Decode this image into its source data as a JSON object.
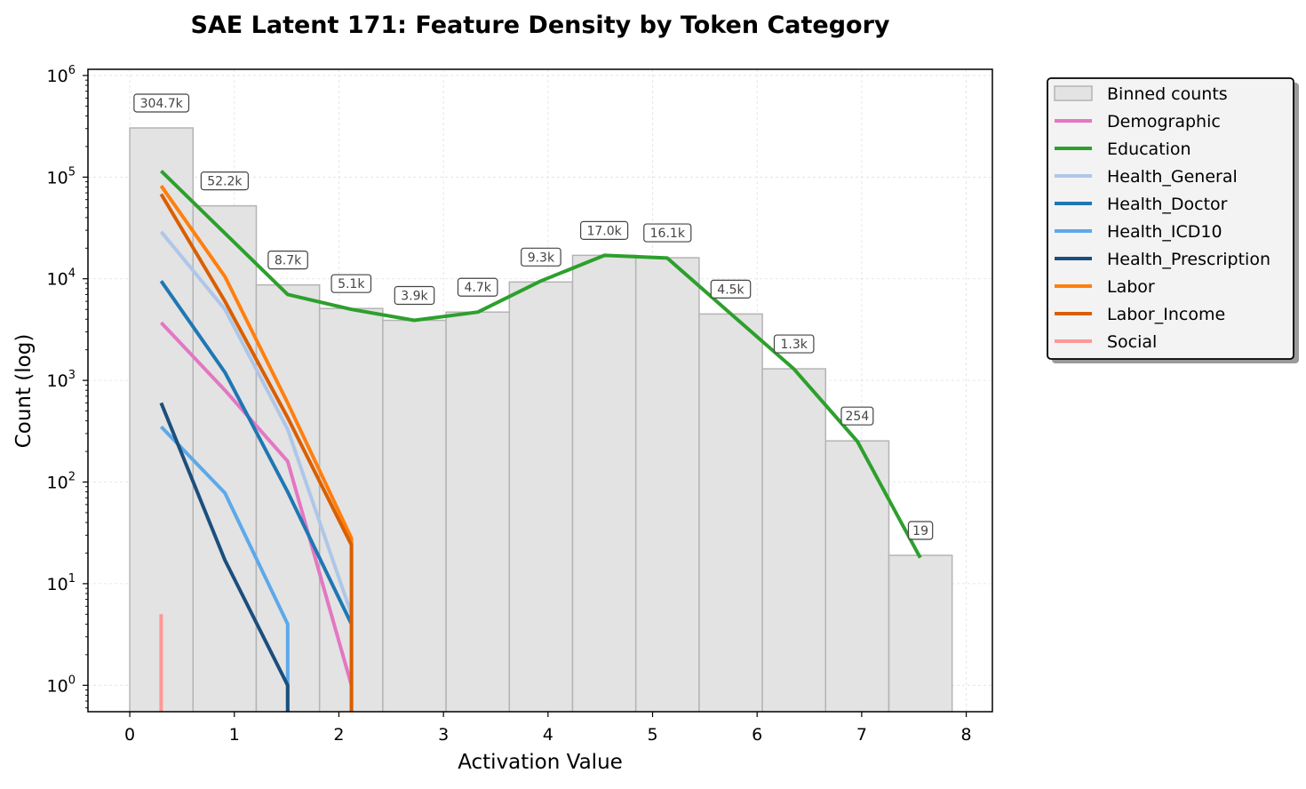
{
  "chart_data": {
    "type": "histogram",
    "title": "SAE Latent 171: Feature Density by Token Category",
    "xlabel": "Activation Value",
    "ylabel": "Count (log)",
    "xlim": [
      -0.4,
      8.25
    ],
    "ylim": [
      0.55,
      1150000
    ],
    "yscale": "log",
    "grid": true,
    "legend_position": "outside-right",
    "x_ticks": [
      {
        "value": 0,
        "label": "0"
      },
      {
        "value": 1,
        "label": "1"
      },
      {
        "value": 2,
        "label": "2"
      },
      {
        "value": 3,
        "label": "3"
      },
      {
        "value": 4,
        "label": "4"
      },
      {
        "value": 5,
        "label": "5"
      },
      {
        "value": 6,
        "label": "6"
      },
      {
        "value": 7,
        "label": "7"
      },
      {
        "value": 8,
        "label": "8"
      }
    ],
    "y_ticks": [
      {
        "value": 1,
        "base": "10",
        "exp": "0"
      },
      {
        "value": 10,
        "base": "10",
        "exp": "1"
      },
      {
        "value": 100,
        "base": "10",
        "exp": "2"
      },
      {
        "value": 1000,
        "base": "10",
        "exp": "3"
      },
      {
        "value": 10000,
        "base": "10",
        "exp": "4"
      },
      {
        "value": 100000,
        "base": "10",
        "exp": "5"
      },
      {
        "value": 1000000,
        "base": "10",
        "exp": "6"
      }
    ],
    "bin_edges": [
      0,
      0.605,
      1.21,
      1.815,
      2.42,
      3.025,
      3.63,
      4.235,
      4.84,
      5.445,
      6.05,
      6.655,
      7.26,
      7.865
    ],
    "bins": {
      "name": "Binned counts",
      "color": "#e3e3e3",
      "edge_color": "#b4b4b4",
      "counts": [
        304700,
        52200,
        8700,
        5100,
        3900,
        4700,
        9300,
        17000,
        16100,
        4500,
        1300,
        254,
        19
      ],
      "labels": [
        "304.7k",
        "52.2k",
        "8.7k",
        "5.1k",
        "3.9k",
        "4.7k",
        "9.3k",
        "17.0k",
        "16.1k",
        "4.5k",
        "1.3k",
        "254",
        "19"
      ]
    },
    "series": [
      {
        "name": "Demographic",
        "color": "#e377c2",
        "x": [
          0.3,
          0.91,
          1.51,
          2.12
        ],
        "y": [
          3700,
          800,
          160,
          1
        ]
      },
      {
        "name": "Education",
        "color": "#2ca02c",
        "x": [
          0.3,
          0.91,
          1.51,
          2.12,
          2.72,
          3.33,
          3.93,
          4.54,
          5.14,
          5.75,
          6.35,
          6.96,
          7.56
        ],
        "y": [
          115000,
          28000,
          7000,
          5000,
          3900,
          4700,
          9500,
          17000,
          16000,
          4500,
          1300,
          250,
          18
        ]
      },
      {
        "name": "Health_General",
        "color": "#aec7e8",
        "x": [
          0.3,
          0.91,
          1.51,
          2.12
        ],
        "y": [
          29000,
          5000,
          330,
          5
        ]
      },
      {
        "name": "Health_Doctor",
        "color": "#1f77b4",
        "x": [
          0.3,
          0.91,
          1.51,
          2.12
        ],
        "y": [
          9500,
          1200,
          80,
          4
        ]
      },
      {
        "name": "Health_ICD10",
        "color": "#5da9e9",
        "x": [
          0.3,
          0.91,
          1.51,
          1.51
        ],
        "y": [
          350,
          78,
          4,
          0.4
        ]
      },
      {
        "name": "Health_Prescription",
        "color": "#1b4f7d",
        "x": [
          0.3,
          0.91,
          1.51,
          1.51
        ],
        "y": [
          600,
          17,
          1,
          0.4
        ]
      },
      {
        "name": "Labor",
        "color": "#ff7f0e",
        "x": [
          0.3,
          0.91,
          1.51,
          2.12,
          2.12
        ],
        "y": [
          82000,
          10500,
          600,
          28,
          0.4
        ]
      },
      {
        "name": "Labor_Income",
        "color": "#d95f02",
        "x": [
          0.3,
          0.91,
          1.51,
          2.12,
          2.12
        ],
        "y": [
          68000,
          6000,
          430,
          24,
          0.4
        ]
      },
      {
        "name": "Social",
        "color": "#ff9896",
        "x": [
          0.3,
          0.3
        ],
        "y": [
          5,
          0.4
        ]
      }
    ]
  }
}
